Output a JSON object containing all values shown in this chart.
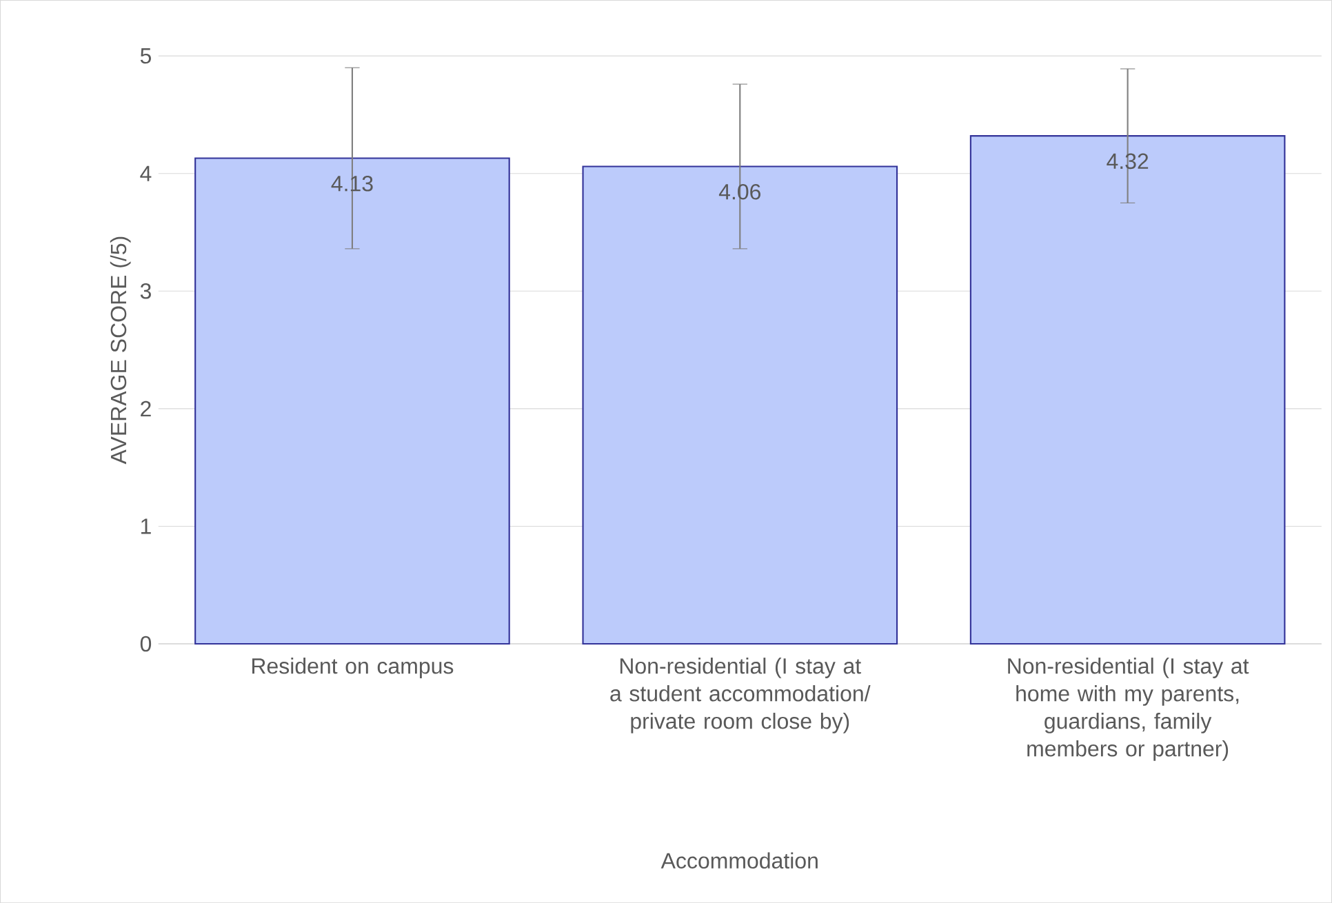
{
  "chart_data": {
    "type": "bar",
    "xlabel": "Accommodation",
    "ylabel": "AVERAGE SCORE (/5)",
    "categories": [
      "Resident on campus",
      "Non-residential (I stay at a student accommodation/ private room close by)",
      "Non-residential (I stay at home with my parents, guardians, family members or partner)"
    ],
    "values": [
      4.13,
      4.06,
      4.32
    ],
    "errors": [
      0.77,
      0.7,
      0.57
    ],
    "color": "#bccbfb",
    "ylim": [
      0,
      5
    ],
    "yticks": [
      0,
      1,
      2,
      3,
      4,
      5
    ],
    "grid": "y",
    "data_labels": true
  }
}
